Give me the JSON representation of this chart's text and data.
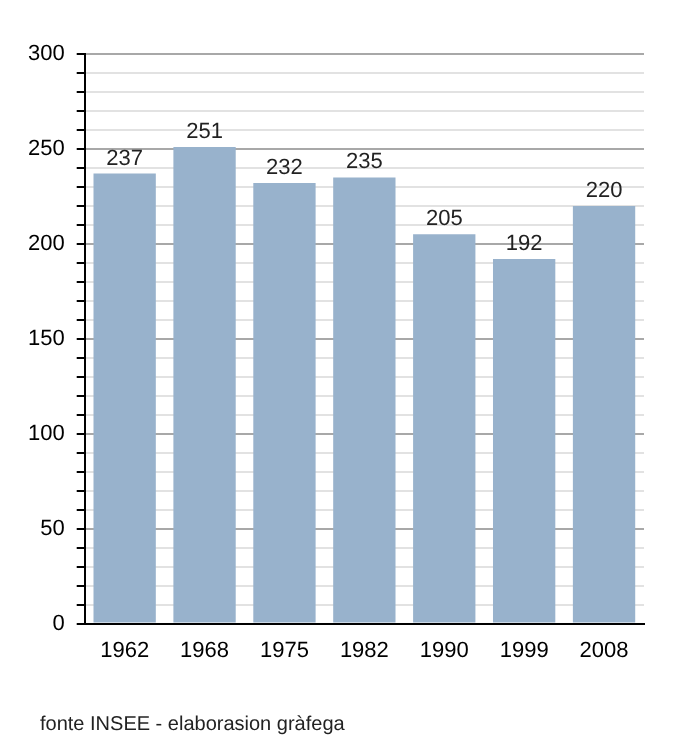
{
  "chart_data": {
    "type": "bar",
    "categories": [
      "1962",
      "1968",
      "1975",
      "1982",
      "1990",
      "1999",
      "2008"
    ],
    "values": [
      237,
      251,
      232,
      235,
      205,
      192,
      220
    ],
    "color": "#98b2cc",
    "ylim": [
      0,
      300
    ],
    "yticks": [
      0,
      {
        "value": 10,
        "label": null
      },
      {
        "value": 20,
        "label": null
      },
      {
        "value": 30,
        "label": null
      },
      {
        "value": 40,
        "label": null
      },
      50,
      {
        "value": 60,
        "label": null
      },
      {
        "value": 70,
        "label": null
      },
      {
        "value": 80,
        "label": null
      },
      {
        "value": 90,
        "label": null
      },
      100,
      {
        "value": 110,
        "label": null
      },
      {
        "value": 120,
        "label": null
      },
      {
        "value": 130,
        "label": null
      },
      {
        "value": 140,
        "label": null
      },
      150,
      {
        "value": 160,
        "label": null
      },
      {
        "value": 170,
        "label": null
      },
      {
        "value": 180,
        "label": null
      },
      {
        "value": 190,
        "label": null
      },
      200,
      {
        "value": 210,
        "label": null
      },
      {
        "value": 220,
        "label": null
      },
      {
        "value": 230,
        "label": null
      },
      {
        "value": 240,
        "label": null
      },
      250,
      {
        "value": 260,
        "label": null
      },
      {
        "value": 270,
        "label": null
      },
      {
        "value": 280,
        "label": null
      },
      {
        "value": 290,
        "label": null
      },
      300
    ],
    "grid": "y",
    "data_labels": true,
    "annotations": [
      "fonte INSEE - elaborasion gràfega"
    ]
  }
}
